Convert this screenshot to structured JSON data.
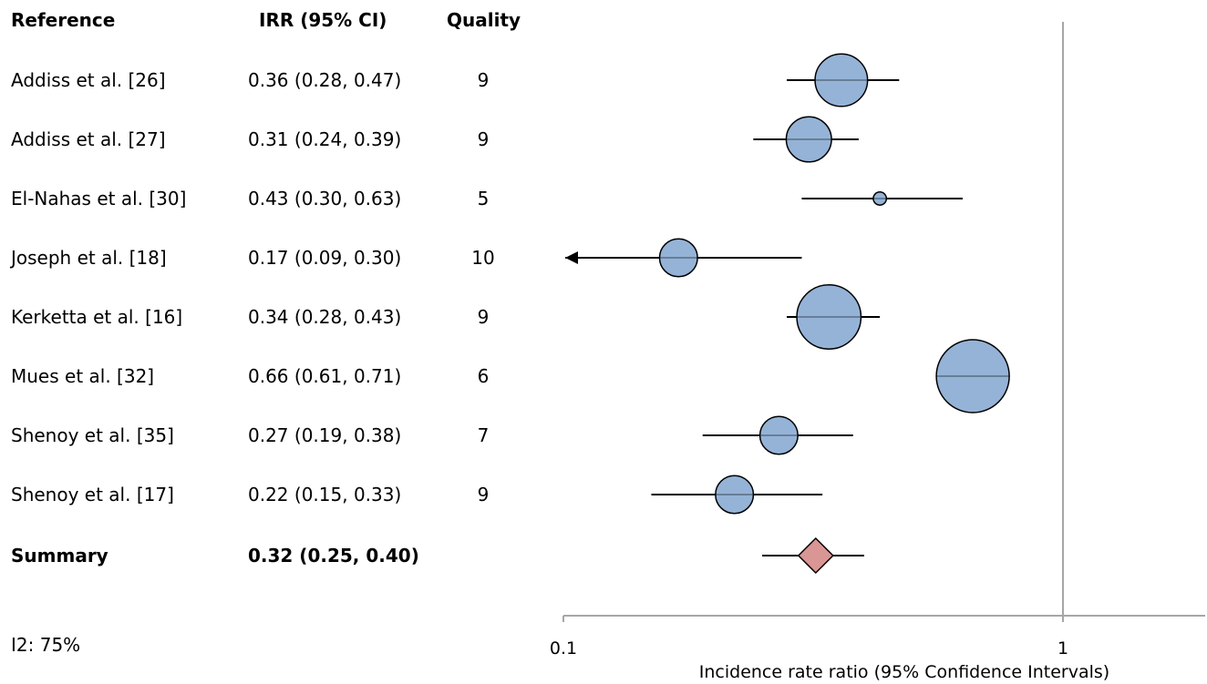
{
  "chart_data": {
    "type": "forest",
    "columns": {
      "reference": "Reference",
      "irr": "IRR (95% CI)",
      "quality": "Quality"
    },
    "studies": [
      {
        "reference": "Addiss et al. [26]",
        "irr_text": "0.36 (0.28, 0.47)",
        "quality": "9",
        "irr": 0.36,
        "lower": 0.28,
        "upper": 0.47,
        "weight": 0.72
      },
      {
        "reference": "Addiss et al. [27]",
        "irr_text": "0.31 (0.24, 0.39)",
        "quality": "9",
        "irr": 0.31,
        "lower": 0.24,
        "upper": 0.39,
        "weight": 0.62
      },
      {
        "reference": "El-Nahas et al. [30]",
        "irr_text": "0.43 (0.30, 0.63)",
        "quality": "5",
        "irr": 0.43,
        "lower": 0.3,
        "upper": 0.63,
        "weight": 0.18
      },
      {
        "reference": "Joseph et al. [18]",
        "irr_text": "0.17 (0.09, 0.30)",
        "quality": "10",
        "irr": 0.17,
        "lower": 0.09,
        "upper": 0.3,
        "weight": 0.52,
        "lower_truncated": true
      },
      {
        "reference": "Kerketta et al. [16]",
        "irr_text": "0.34 (0.28, 0.43)",
        "quality": "9",
        "irr": 0.34,
        "lower": 0.28,
        "upper": 0.43,
        "weight": 0.88
      },
      {
        "reference": "Mues et al. [32]",
        "irr_text": "0.66 (0.61, 0.71)",
        "quality": "6",
        "irr": 0.66,
        "lower": 0.61,
        "upper": 0.71,
        "weight": 1.0
      },
      {
        "reference": "Shenoy et al. [35]",
        "irr_text": "0.27 (0.19, 0.38)",
        "quality": "7",
        "irr": 0.27,
        "lower": 0.19,
        "upper": 0.38,
        "weight": 0.52
      },
      {
        "reference": "Shenoy et al. [17]",
        "irr_text": "0.22 (0.15, 0.33)",
        "quality": "9",
        "irr": 0.22,
        "lower": 0.15,
        "upper": 0.33,
        "weight": 0.52
      }
    ],
    "summary": {
      "reference": "Summary",
      "irr_text": "0.32 (0.25, 0.40)",
      "irr": 0.32,
      "lower": 0.25,
      "upper": 0.4
    },
    "heterogeneity": "I2: 75%",
    "x_axis": {
      "scale": "log",
      "xlim": [
        0.1,
        2.0
      ],
      "ticks": [
        0.1,
        1
      ],
      "tick_labels": [
        "0.1",
        "1"
      ],
      "reference_line": 1,
      "label": "Incidence rate ratio (95% Confidence Intervals)"
    },
    "colors": {
      "study_marker": "#95b3d7",
      "summary_marker": "#da9694",
      "marker_outline": "#000000",
      "reference_line": "#a6a6a6",
      "axis": "#a6a6a6"
    }
  }
}
